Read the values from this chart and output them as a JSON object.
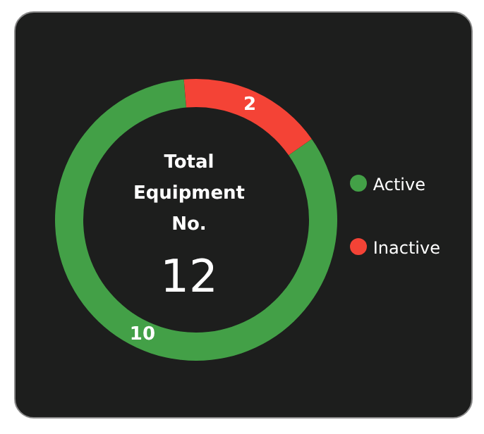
{
  "chart_data": {
    "type": "donut",
    "title": "Total Equipment No.",
    "annotations": [
      "12"
    ],
    "categories": [
      "Active",
      "Inactive"
    ],
    "values": [
      10,
      2
    ],
    "colors": [
      "#43a047",
      "#f44336"
    ],
    "data_labels": true,
    "legend": "right"
  }
}
